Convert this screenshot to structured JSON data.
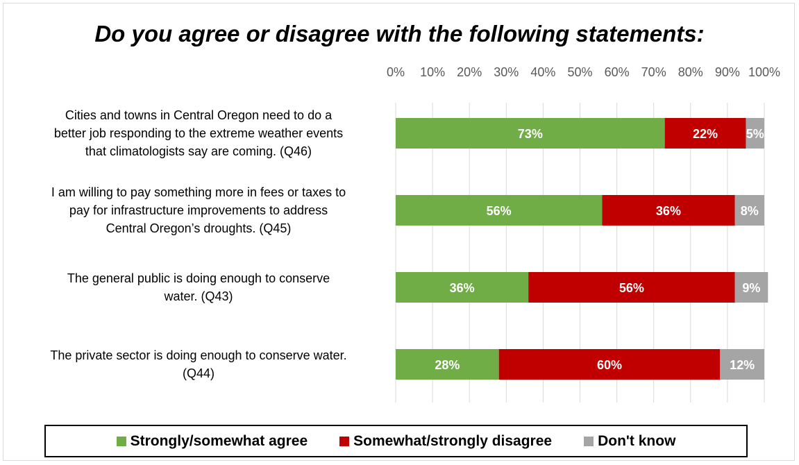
{
  "chart_data": {
    "type": "bar",
    "orientation": "horizontal",
    "stacked": true,
    "title": "Do you agree or disagree with the following statements:",
    "xlim": [
      0,
      100
    ],
    "x_ticks": [
      "0%",
      "10%",
      "20%",
      "30%",
      "40%",
      "50%",
      "60%",
      "70%",
      "80%",
      "90%",
      "100%"
    ],
    "grid": "vertical",
    "legend_position": "bottom",
    "categories": [
      [
        "Cities and towns in Central Oregon need to do a",
        "better job responding to the extreme weather events",
        "that climatologists say are coming. (Q46)"
      ],
      [
        "I am willing to pay something more in fees or taxes to",
        "pay for infrastructure improvements to address",
        "Central Oregon’s droughts. (Q45)"
      ],
      [
        "The general public is doing enough to conserve",
        "water. (Q43)"
      ],
      [
        "The private sector is doing enough to conserve water.",
        "(Q44)"
      ]
    ],
    "series": [
      {
        "name": "Strongly/somewhat agree",
        "color": "#70ad47",
        "values": [
          73,
          56,
          36,
          28
        ],
        "labels": [
          "73%",
          "56%",
          "36%",
          "28%"
        ]
      },
      {
        "name": "Somewhat/strongly disagree",
        "color": "#c00000",
        "values": [
          22,
          36,
          56,
          60
        ],
        "labels": [
          "22%",
          "36%",
          "56%",
          "60%"
        ]
      },
      {
        "name": "Don't know",
        "color": "#a5a5a5",
        "values": [
          5,
          8,
          9,
          12
        ],
        "labels": [
          "5%",
          "8%",
          "9%",
          "12%"
        ]
      }
    ]
  }
}
